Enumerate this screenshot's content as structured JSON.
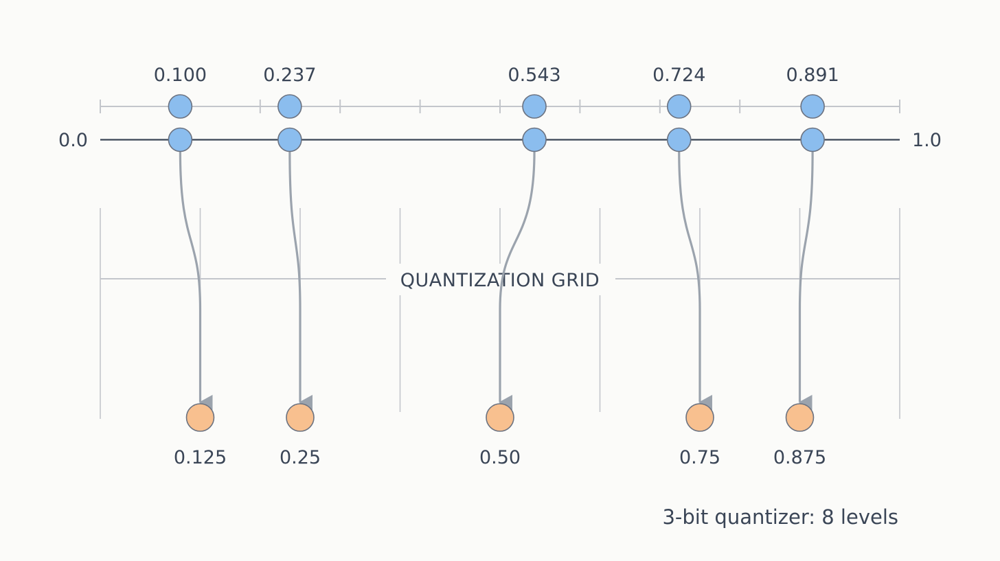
{
  "scale": {
    "min": 0.0,
    "max": 1.0,
    "min_label": "0.0",
    "max_label": "1.0"
  },
  "inputs": [
    {
      "value": 0.1,
      "label": "0.100"
    },
    {
      "value": 0.237,
      "label": "0.237"
    },
    {
      "value": 0.543,
      "label": "0.543"
    },
    {
      "value": 0.724,
      "label": "0.724"
    },
    {
      "value": 0.891,
      "label": "0.891"
    }
  ],
  "quantized": [
    {
      "value": 0.125,
      "label": "0.125"
    },
    {
      "value": 0.25,
      "label": "0.25"
    },
    {
      "value": 0.5,
      "label": "0.50"
    },
    {
      "value": 0.75,
      "label": "0.75"
    },
    {
      "value": 0.875,
      "label": "0.875"
    }
  ],
  "grid": {
    "title": "QUANTIZATION GRID",
    "levels": 8
  },
  "caption": "3-bit quantizer: 8 levels",
  "colors": {
    "input_dot": "#8bbdee",
    "output_dot": "#f8c08f",
    "dot_stroke": "#6b7280",
    "axis": "#3a4556",
    "arrow": "#9ba3ad",
    "grid": "#c3c6cb",
    "text": "#3a4556"
  }
}
